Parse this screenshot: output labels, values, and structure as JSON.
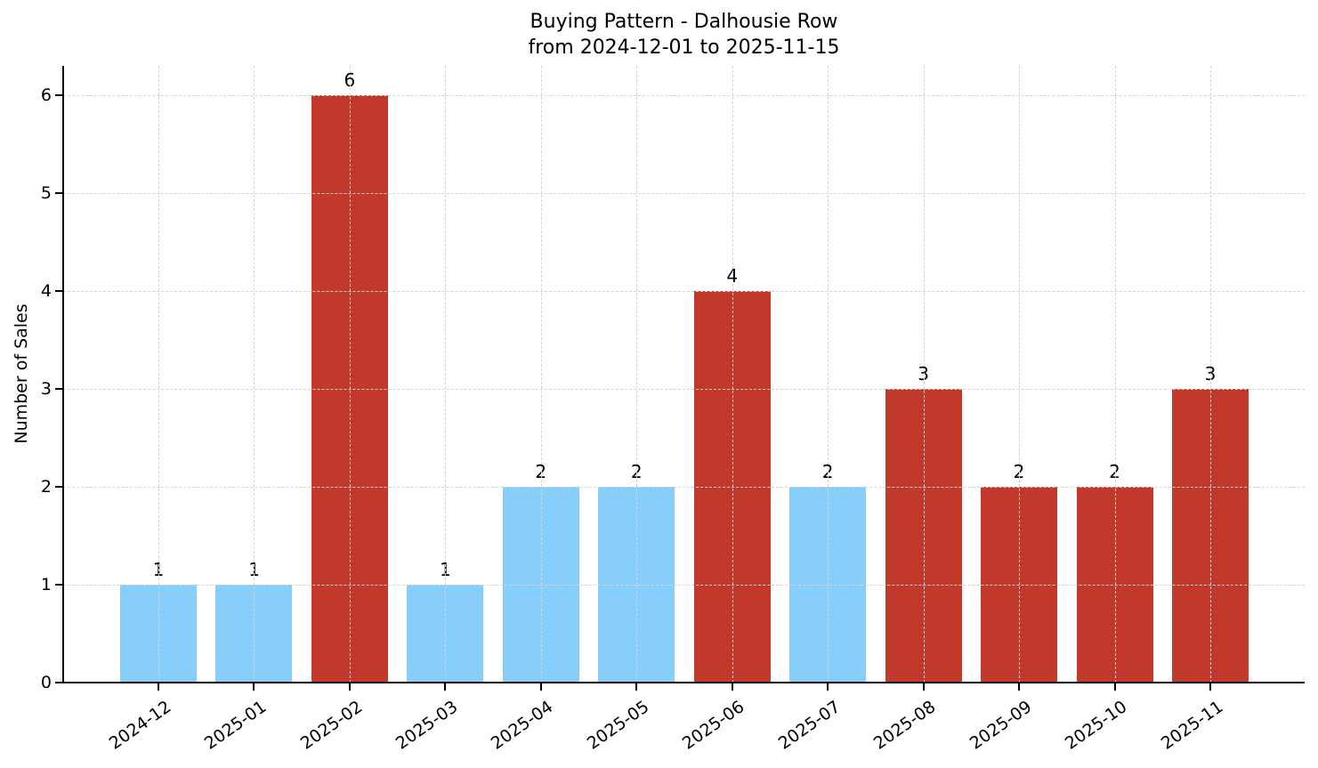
{
  "chart_data": {
    "type": "bar",
    "title": "Buying Pattern - Dalhousie Row",
    "subtitle": "from 2024-12-01 to 2025-11-15",
    "xlabel": "",
    "ylabel": "Number of Sales",
    "ylim": [
      0,
      6.3
    ],
    "yticks": [
      0,
      1,
      2,
      3,
      4,
      5,
      6
    ],
    "grid": true,
    "legend": null,
    "categories": [
      "2024-12",
      "2025-01",
      "2025-02",
      "2025-03",
      "2025-04",
      "2025-05",
      "2025-06",
      "2025-07",
      "2025-08",
      "2025-09",
      "2025-10",
      "2025-11"
    ],
    "values": [
      1,
      1,
      6,
      1,
      2,
      2,
      4,
      2,
      3,
      2,
      2,
      3
    ],
    "bar_colors": [
      "#87CEFA",
      "#87CEFA",
      "#C0392B",
      "#87CEFA",
      "#87CEFA",
      "#87CEFA",
      "#C0392B",
      "#87CEFA",
      "#C0392B",
      "#C0392B",
      "#C0392B",
      "#C0392B"
    ],
    "data_labels": [
      "1",
      "1",
      "6",
      "1",
      "2",
      "2",
      "4",
      "2",
      "3",
      "2",
      "2",
      "3"
    ]
  },
  "colors": {
    "light_blue": "#87CEFA",
    "red": "#C0392B",
    "grid": "#d4d4d4",
    "axis": "#000000"
  }
}
